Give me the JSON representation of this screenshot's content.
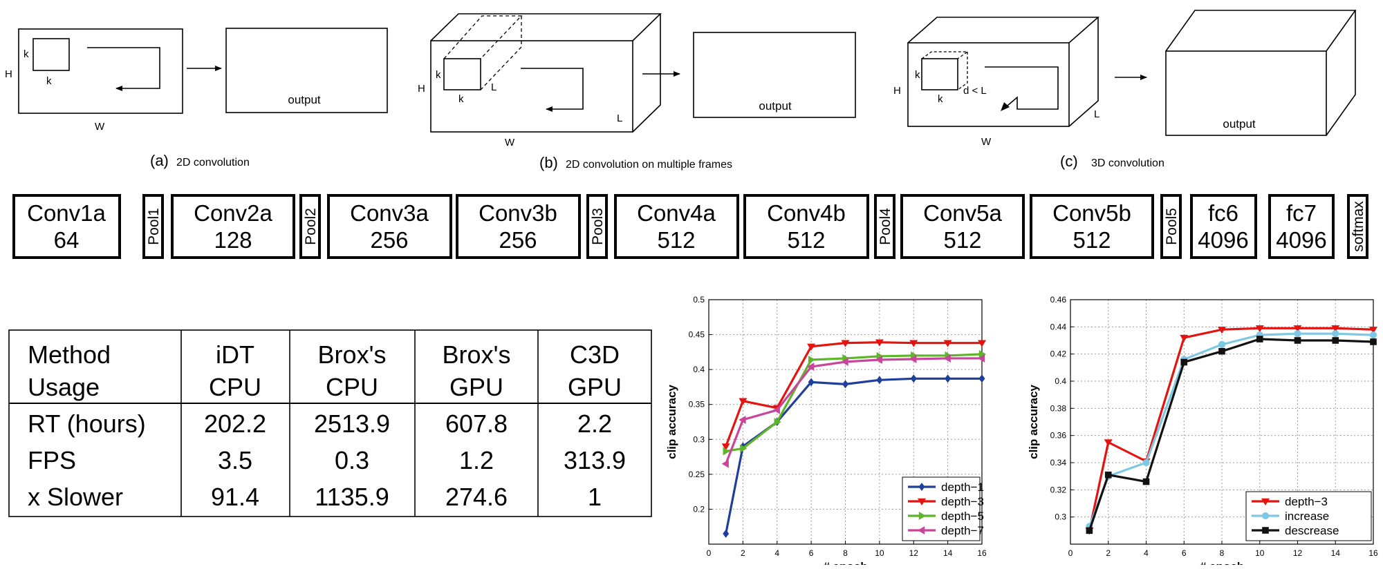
{
  "diagrams": {
    "a": {
      "caption_letter": "(a)",
      "caption_text": "2D convolution",
      "h": "H",
      "w": "W",
      "k1": "k",
      "k2": "k",
      "output": "output"
    },
    "b": {
      "caption_letter": "(b)",
      "caption_text": "2D convolution on multiple frames",
      "h": "H",
      "w": "W",
      "k1": "k",
      "k2": "k",
      "l_kernel": "L",
      "l_depth": "L",
      "output": "output"
    },
    "c": {
      "caption_letter": "(c)",
      "caption_text": "3D convolution",
      "h": "H",
      "w": "W",
      "k1": "k",
      "k2": "k",
      "d": "d < L",
      "l_depth": "L",
      "output": "output"
    }
  },
  "architecture": {
    "layers": [
      {
        "name": "Conv1a",
        "filters": "64"
      },
      {
        "name": "Pool1"
      },
      {
        "name": "Conv2a",
        "filters": "128"
      },
      {
        "name": "Pool2"
      },
      {
        "name": "Conv3a",
        "filters": "256"
      },
      {
        "name": "Conv3b",
        "filters": "256"
      },
      {
        "name": "Pool3"
      },
      {
        "name": "Conv4a",
        "filters": "512"
      },
      {
        "name": "Conv4b",
        "filters": "512"
      },
      {
        "name": "Pool4"
      },
      {
        "name": "Conv5a",
        "filters": "512"
      },
      {
        "name": "Conv5b",
        "filters": "512"
      },
      {
        "name": "Pool5"
      },
      {
        "name": "fc6",
        "filters": "4096"
      },
      {
        "name": "fc7",
        "filters": "4096"
      },
      {
        "name": "softmax"
      }
    ]
  },
  "runtime_table": {
    "header": [
      [
        "Method",
        "Usage"
      ],
      [
        "iDT",
        "CPU"
      ],
      [
        "Brox's",
        "CPU"
      ],
      [
        "Brox's",
        "GPU"
      ],
      [
        "C3D",
        "GPU"
      ]
    ],
    "rows": [
      [
        "RT (hours)",
        "202.2",
        "2513.9",
        "607.8",
        "2.2"
      ],
      [
        "FPS",
        "3.5",
        "0.3",
        "1.2",
        "313.9"
      ],
      [
        "x Slower",
        "91.4",
        "1135.9",
        "274.6",
        "1"
      ]
    ]
  },
  "chart_data": [
    {
      "type": "line",
      "title": "",
      "xlabel": "# epoch",
      "ylabel": "clip accuracy",
      "xlim": [
        0,
        16
      ],
      "ylim": [
        0.15,
        0.5
      ],
      "xticks": [
        0,
        2,
        4,
        6,
        8,
        10,
        12,
        14,
        16
      ],
      "xtick_labels": [
        "0",
        "2",
        "4",
        "6",
        "8",
        "10",
        "12",
        "14",
        "16"
      ],
      "yticks": [
        0.2,
        0.25,
        0.3,
        0.35,
        0.4,
        0.45,
        0.5
      ],
      "ytick_labels": [
        "0.2",
        "0.25",
        "0.3",
        "0.35",
        "0.4",
        "0.45",
        "0.5"
      ],
      "grid": true,
      "legend": "bottom-right",
      "x": [
        1,
        2,
        4,
        6,
        8,
        10,
        12,
        14,
        16
      ],
      "series": [
        {
          "name": "depth−1",
          "color": "#1f3f9a",
          "marker": "diamond",
          "values": [
            0.165,
            0.29,
            0.325,
            0.382,
            0.379,
            0.385,
            0.387,
            0.387,
            0.387
          ]
        },
        {
          "name": "depth−3",
          "color": "#e3140f",
          "marker": "triangle-down",
          "values": [
            0.29,
            0.355,
            0.345,
            0.433,
            0.438,
            0.439,
            0.438,
            0.438,
            0.438
          ]
        },
        {
          "name": "depth−5",
          "color": "#5fb42a",
          "marker": "triangle-right",
          "values": [
            0.283,
            0.287,
            0.325,
            0.414,
            0.416,
            0.419,
            0.42,
            0.42,
            0.422
          ]
        },
        {
          "name": "depth−7",
          "color": "#c9459c",
          "marker": "triangle-left",
          "values": [
            0.265,
            0.328,
            0.342,
            0.404,
            0.411,
            0.414,
            0.415,
            0.416,
            0.416
          ]
        }
      ]
    },
    {
      "type": "line",
      "title": "",
      "xlabel": "# epoch",
      "ylabel": "clip accuracy",
      "xlim": [
        0,
        16
      ],
      "ylim": [
        0.28,
        0.46
      ],
      "xticks": [
        0,
        2,
        4,
        6,
        8,
        10,
        12,
        14,
        16
      ],
      "xtick_labels": [
        "0",
        "2",
        "4",
        "6",
        "8",
        "10",
        "12",
        "14",
        "16"
      ],
      "yticks": [
        0.3,
        0.32,
        0.34,
        0.36,
        0.38,
        0.4,
        0.42,
        0.44,
        0.46
      ],
      "ytick_labels": [
        "0.3",
        "0.32",
        "0.34",
        "0.36",
        "0.38",
        "0.4",
        "0.42",
        "0.44",
        "0.46"
      ],
      "grid": true,
      "legend": "bottom-right",
      "x": [
        1,
        2,
        4,
        6,
        8,
        10,
        12,
        14,
        16
      ],
      "series": [
        {
          "name": "depth−3",
          "color": "#e3140f",
          "marker": "triangle-down",
          "values": [
            0.29,
            0.355,
            0.341,
            0.432,
            0.438,
            0.439,
            0.439,
            0.439,
            0.438
          ]
        },
        {
          "name": "increase",
          "color": "#7ec8e3",
          "marker": "circle",
          "values": [
            0.293,
            0.33,
            0.34,
            0.416,
            0.427,
            0.434,
            0.435,
            0.435,
            0.434
          ]
        },
        {
          "name": "descrease",
          "color": "#111111",
          "marker": "square",
          "values": [
            0.29,
            0.331,
            0.326,
            0.414,
            0.422,
            0.431,
            0.43,
            0.43,
            0.429
          ]
        }
      ]
    }
  ]
}
